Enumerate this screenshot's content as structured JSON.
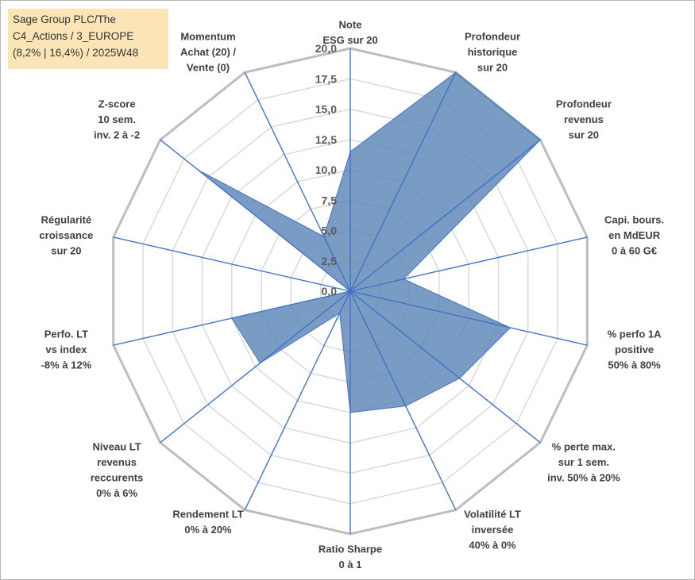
{
  "chart_data": {
    "type": "radar",
    "title_lines": [
      "Sage Group PLC/The",
      "C4_Actions / 3_EUROPE",
      "(8,2% | 16,4%) / 2025W48"
    ],
    "rmin": 0,
    "rmax": 20,
    "ticks": [
      "0,0",
      "2,5",
      "5,0",
      "7,5",
      "10,0",
      "12,5",
      "15,0",
      "17,5",
      "20,0"
    ],
    "axes": [
      {
        "lines": [
          "Note",
          "ESG sur 20"
        ],
        "value": 11.5
      },
      {
        "lines": [
          "Profondeur",
          "historique",
          "sur 20"
        ],
        "value": 20.0
      },
      {
        "lines": [
          "Profondeur",
          "revenus",
          "sur 20"
        ],
        "value": 20.0
      },
      {
        "lines": [
          "Capi. bours.",
          "en MdEUR",
          "0 à 60 G€"
        ],
        "value": 4.5
      },
      {
        "lines": [
          "% perfo 1A",
          "positive",
          "50% à 80%"
        ],
        "value": 13.5
      },
      {
        "lines": [
          "% perte max.",
          "sur 1 sem.",
          "inv. 50% à 20%"
        ],
        "value": 11.5
      },
      {
        "lines": [
          "Volatilité LT",
          "inversée",
          "40% à 0%"
        ],
        "value": 10.5
      },
      {
        "lines": [
          "Ratio Sharpe",
          "0 à 1"
        ],
        "value": 10.0
      },
      {
        "lines": [
          "Rendement LT",
          "0% à 20%"
        ],
        "value": 2.0
      },
      {
        "lines": [
          "Niveau LT",
          "revenus",
          "reccurents",
          "0% à 6%"
        ],
        "value": 9.5
      },
      {
        "lines": [
          "Perfo. LT",
          "vs index",
          "-8% à 12%"
        ],
        "value": 10.0
      },
      {
        "lines": [
          "Régularité",
          "croissance",
          "sur 20"
        ],
        "value": 0.0
      },
      {
        "lines": [
          "Z-score",
          "10 sem.",
          "inv. 2 à -2"
        ],
        "value": 16.0
      },
      {
        "lines": [
          "Momentum",
          "Achat (20) /",
          "Vente (0)"
        ],
        "value": 5.0
      }
    ],
    "colors": {
      "fill": "#5b86b8",
      "line": "#4472c4",
      "grid": "#c8c8c8",
      "title_bg": "#fbe5b6"
    },
    "grid": true,
    "legend": "none"
  }
}
